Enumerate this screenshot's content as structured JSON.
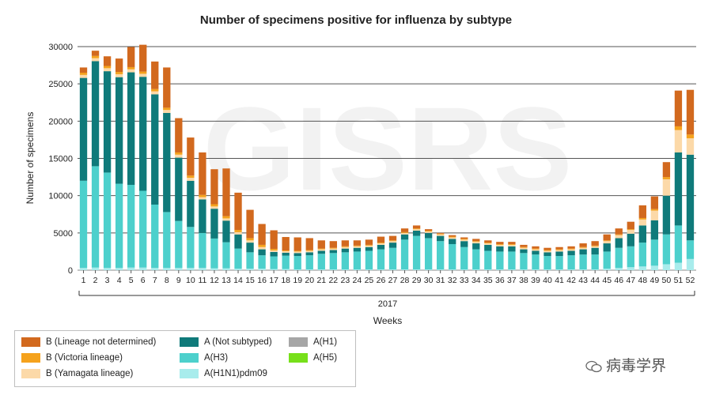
{
  "chart_data": {
    "type": "bar",
    "stacked": true,
    "title": "Number of specimens positive for influenza by subtype",
    "xlabel": "Weeks",
    "ylabel": "Number of specimens",
    "year_label": "2017",
    "ylim": [
      0,
      30000
    ],
    "yticks": [
      0,
      5000,
      10000,
      15000,
      20000,
      25000,
      30000
    ],
    "grid": true,
    "legend_position": "bottom-left",
    "categories": [
      "1",
      "2",
      "3",
      "4",
      "5",
      "6",
      "7",
      "8",
      "9",
      "10",
      "11",
      "12",
      "13",
      "14",
      "15",
      "16",
      "17",
      "18",
      "19",
      "20",
      "21",
      "22",
      "23",
      "24",
      "25",
      "26",
      "27",
      "28",
      "29",
      "30",
      "31",
      "32",
      "33",
      "34",
      "35",
      "36",
      "37",
      "38",
      "39",
      "40",
      "41",
      "42",
      "43",
      "44",
      "45",
      "46",
      "47",
      "48",
      "49",
      "50",
      "51",
      "52"
    ],
    "series": [
      {
        "name": "A(H1N1)pdm09",
        "color": "#a8ecec",
        "values": [
          300,
          350,
          300,
          300,
          350,
          350,
          300,
          300,
          300,
          300,
          300,
          250,
          250,
          200,
          200,
          200,
          150,
          150,
          100,
          100,
          100,
          100,
          100,
          100,
          100,
          100,
          100,
          100,
          100,
          100,
          100,
          100,
          100,
          100,
          100,
          100,
          100,
          100,
          100,
          100,
          100,
          100,
          100,
          100,
          200,
          300,
          400,
          500,
          600,
          800,
          1000,
          1500
        ]
      },
      {
        "name": "A(H1)",
        "color": "#a6a6a6",
        "values": [
          0,
          0,
          0,
          0,
          0,
          0,
          0,
          0,
          0,
          0,
          0,
          0,
          0,
          0,
          0,
          0,
          0,
          0,
          0,
          0,
          0,
          0,
          0,
          0,
          0,
          0,
          0,
          0,
          0,
          0,
          0,
          0,
          0,
          0,
          0,
          0,
          0,
          0,
          0,
          0,
          0,
          0,
          0,
          0,
          0,
          0,
          0,
          0,
          0,
          0,
          0,
          0
        ]
      },
      {
        "name": "A(H3)",
        "color": "#4dd0cc",
        "values": [
          11700,
          13600,
          12800,
          11300,
          11100,
          10300,
          8500,
          7500,
          6300,
          5500,
          4700,
          4000,
          3500,
          2700,
          2200,
          1800,
          1700,
          1800,
          1800,
          1900,
          2100,
          2200,
          2300,
          2400,
          2500,
          2700,
          2900,
          4000,
          4500,
          4200,
          3800,
          3400,
          3000,
          2700,
          2500,
          2400,
          2400,
          2200,
          2000,
          1800,
          1800,
          1900,
          2000,
          2000,
          2300,
          2700,
          2800,
          3200,
          3500,
          4000,
          5000,
          2500
        ]
      },
      {
        "name": "A(H5)",
        "color": "#77e01a",
        "values": [
          0,
          0,
          0,
          0,
          0,
          0,
          0,
          0,
          0,
          0,
          0,
          0,
          0,
          0,
          0,
          0,
          0,
          0,
          0,
          0,
          0,
          0,
          0,
          0,
          0,
          0,
          0,
          0,
          0,
          0,
          0,
          0,
          0,
          0,
          0,
          0,
          0,
          0,
          0,
          0,
          0,
          0,
          0,
          0,
          0,
          0,
          0,
          0,
          0,
          0,
          0,
          0
        ]
      },
      {
        "name": "A (Not subtyped)",
        "color": "#0f7a7a",
        "values": [
          13800,
          14100,
          13600,
          14300,
          15100,
          15300,
          14800,
          13300,
          8500,
          6200,
          4500,
          4000,
          2900,
          1900,
          1300,
          800,
          600,
          400,
          400,
          400,
          400,
          400,
          500,
          500,
          500,
          600,
          700,
          700,
          700,
          700,
          700,
          700,
          800,
          800,
          800,
          700,
          700,
          500,
          500,
          500,
          600,
          600,
          700,
          900,
          1100,
          1300,
          1700,
          2300,
          2600,
          5200,
          9800,
          11500
        ]
      },
      {
        "name": "B (Yamagata lineage)",
        "color": "#fcd9a8",
        "values": [
          400,
          400,
          400,
          400,
          400,
          400,
          400,
          400,
          400,
          400,
          300,
          300,
          300,
          300,
          300,
          300,
          200,
          200,
          200,
          200,
          200,
          200,
          200,
          200,
          200,
          200,
          200,
          200,
          200,
          200,
          200,
          200,
          200,
          200,
          200,
          200,
          200,
          200,
          200,
          200,
          200,
          200,
          200,
          200,
          300,
          400,
          500,
          800,
          1300,
          2200,
          3000,
          2200
        ]
      },
      {
        "name": "B (Victoria lineage)",
        "color": "#f5a21c",
        "values": [
          300,
          300,
          300,
          300,
          300,
          300,
          300,
          300,
          300,
          300,
          300,
          300,
          300,
          300,
          300,
          300,
          200,
          100,
          100,
          100,
          100,
          100,
          100,
          100,
          100,
          100,
          100,
          100,
          100,
          100,
          100,
          100,
          100,
          100,
          100,
          100,
          100,
          100,
          100,
          100,
          100,
          100,
          100,
          100,
          100,
          100,
          100,
          200,
          200,
          300,
          500,
          500
        ]
      },
      {
        "name": "B (Lineage not determined)",
        "color": "#d2691e",
        "values": [
          700,
          700,
          1300,
          1800,
          2700,
          3600,
          3700,
          5400,
          4600,
          5100,
          5700,
          4700,
          6400,
          5000,
          3800,
          2800,
          2500,
          1800,
          1800,
          1600,
          1100,
          900,
          800,
          700,
          700,
          800,
          600,
          500,
          400,
          200,
          100,
          200,
          200,
          300,
          300,
          300,
          300,
          300,
          300,
          300,
          300,
          300,
          500,
          600,
          800,
          800,
          1000,
          1700,
          1700,
          2000,
          4800,
          6000
        ]
      }
    ]
  },
  "legend": {
    "col1": [
      "B (Lineage not determined)",
      "B (Victoria lineage)",
      "B (Yamagata lineage)"
    ],
    "col2": [
      "A (Not subtyped)",
      "A(H3)",
      "A(H1N1)pdm09"
    ],
    "col3": [
      "A(H1)",
      "A(H5)"
    ]
  },
  "watermark": {
    "text": "病毒学界",
    "icon": "wechat-icon"
  },
  "background_watermark": "GISRS"
}
